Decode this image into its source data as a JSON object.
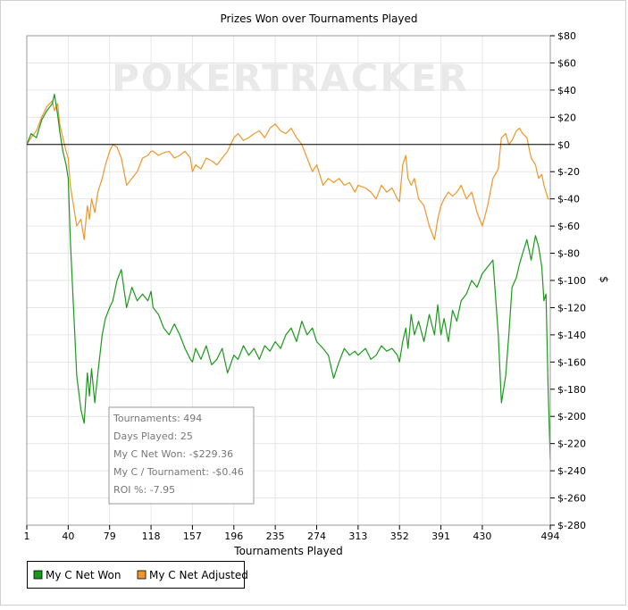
{
  "chart_data": {
    "type": "line",
    "title": "Prizes Won over Tournaments Played",
    "xlabel": "Tournaments Played",
    "ylabel": "$",
    "watermark": "POKERTRACKER",
    "xlim": [
      1,
      494
    ],
    "ylim": [
      -280,
      80
    ],
    "x_ticks": [
      1,
      40,
      79,
      118,
      157,
      196,
      235,
      274,
      313,
      352,
      391,
      430,
      494
    ],
    "y_ticks": [
      80,
      60,
      40,
      20,
      0,
      -20,
      -40,
      -60,
      -80,
      -100,
      -120,
      -140,
      -160,
      -180,
      -200,
      -220,
      -240,
      -260,
      -280
    ],
    "y_tick_labels": [
      "$80",
      "$60",
      "$40",
      "$20",
      "$0",
      "$-20",
      "$-40",
      "$-60",
      "$-80",
      "$-100",
      "$-120",
      "$-140",
      "$-160",
      "$-180",
      "$-200",
      "$-220",
      "$-240",
      "$-260",
      "$-280"
    ],
    "y_axis_position": "right",
    "grid": true,
    "legend_position": "bottom-left",
    "series": [
      {
        "name": "My C Net Won",
        "color": "#1a9a1a",
        "x": [
          1,
          5,
          10,
          15,
          20,
          25,
          27,
          30,
          32,
          35,
          38,
          40,
          42,
          45,
          48,
          52,
          55,
          58,
          60,
          62,
          65,
          68,
          72,
          75,
          79,
          82,
          86,
          90,
          95,
          100,
          105,
          110,
          115,
          118,
          120,
          125,
          130,
          135,
          140,
          145,
          150,
          155,
          157,
          160,
          165,
          170,
          175,
          180,
          185,
          190,
          196,
          200,
          205,
          210,
          215,
          220,
          225,
          230,
          235,
          240,
          245,
          250,
          255,
          260,
          265,
          270,
          274,
          280,
          285,
          290,
          295,
          300,
          305,
          310,
          313,
          320,
          325,
          330,
          335,
          340,
          345,
          350,
          352,
          355,
          358,
          360,
          363,
          366,
          370,
          375,
          380,
          385,
          388,
          391,
          394,
          398,
          402,
          406,
          410,
          415,
          420,
          425,
          430,
          435,
          440,
          445,
          448,
          452,
          455,
          458,
          462,
          465,
          468,
          472,
          476,
          480,
          483,
          486,
          488,
          490,
          492,
          494
        ],
        "y": [
          0,
          8,
          5,
          18,
          25,
          30,
          37,
          22,
          10,
          -5,
          -15,
          -25,
          -70,
          -120,
          -170,
          -195,
          -205,
          -168,
          -185,
          -165,
          -190,
          -168,
          -140,
          -128,
          -120,
          -115,
          -100,
          -92,
          -120,
          -105,
          -115,
          -110,
          -115,
          -108,
          -120,
          -125,
          -135,
          -140,
          -132,
          -140,
          -150,
          -158,
          -160,
          -150,
          -158,
          -148,
          -162,
          -158,
          -150,
          -168,
          -155,
          -158,
          -148,
          -155,
          -150,
          -158,
          -148,
          -152,
          -145,
          -150,
          -140,
          -135,
          -145,
          -130,
          -140,
          -135,
          -145,
          -150,
          -155,
          -172,
          -160,
          -150,
          -155,
          -152,
          -155,
          -150,
          -158,
          -155,
          -148,
          -152,
          -150,
          -155,
          -160,
          -145,
          -135,
          -150,
          -125,
          -140,
          -130,
          -145,
          -125,
          -140,
          -118,
          -140,
          -128,
          -145,
          -122,
          -130,
          -115,
          -110,
          -100,
          -105,
          -95,
          -90,
          -85,
          -140,
          -190,
          -170,
          -140,
          -105,
          -98,
          -88,
          -80,
          -70,
          -85,
          -67,
          -75,
          -90,
          -115,
          -110,
          -180,
          -232
        ]
      },
      {
        "name": "My C Net Adjusted",
        "color": "#f0962a",
        "x": [
          1,
          5,
          10,
          15,
          20,
          25,
          27,
          30,
          32,
          35,
          38,
          40,
          42,
          45,
          48,
          52,
          55,
          58,
          60,
          62,
          65,
          68,
          72,
          75,
          79,
          82,
          86,
          90,
          95,
          100,
          105,
          110,
          115,
          118,
          120,
          125,
          130,
          135,
          140,
          145,
          150,
          155,
          157,
          160,
          165,
          170,
          175,
          180,
          185,
          190,
          196,
          200,
          205,
          210,
          215,
          220,
          225,
          230,
          235,
          240,
          245,
          250,
          255,
          260,
          265,
          270,
          274,
          280,
          285,
          290,
          295,
          300,
          305,
          310,
          313,
          320,
          325,
          330,
          335,
          340,
          345,
          350,
          352,
          355,
          358,
          360,
          363,
          366,
          370,
          375,
          380,
          385,
          388,
          391,
          394,
          398,
          402,
          406,
          410,
          415,
          420,
          425,
          430,
          435,
          440,
          445,
          448,
          452,
          455,
          458,
          462,
          465,
          468,
          472,
          476,
          480,
          483,
          486,
          488,
          490,
          492,
          494
        ],
        "y": [
          0,
          5,
          10,
          20,
          28,
          32,
          25,
          30,
          15,
          5,
          -5,
          -10,
          -30,
          -45,
          -60,
          -55,
          -70,
          -45,
          -55,
          -40,
          -50,
          -35,
          -25,
          -15,
          -5,
          0,
          -2,
          -10,
          -30,
          -25,
          -20,
          -10,
          -8,
          -5,
          -5,
          -8,
          -6,
          -5,
          -10,
          -8,
          -5,
          -10,
          -20,
          -15,
          -18,
          -10,
          -12,
          -15,
          -10,
          -5,
          5,
          8,
          3,
          5,
          8,
          10,
          5,
          12,
          15,
          10,
          8,
          12,
          5,
          0,
          -10,
          -20,
          -15,
          -30,
          -25,
          -28,
          -25,
          -30,
          -28,
          -35,
          -30,
          -32,
          -35,
          -40,
          -30,
          -35,
          -32,
          -40,
          -42,
          -15,
          -8,
          -25,
          -30,
          -25,
          -40,
          -45,
          -60,
          -70,
          -55,
          -45,
          -40,
          -35,
          -38,
          -35,
          -30,
          -40,
          -35,
          -50,
          -60,
          -45,
          -25,
          -18,
          5,
          8,
          0,
          3,
          10,
          12,
          8,
          5,
          -10,
          -15,
          -25,
          -22,
          -30,
          -35,
          -40,
          -40
        ]
      }
    ],
    "info_box": [
      "Tournaments: 494",
      "Days Played: 25",
      "My C Net Won: -$229.36",
      "My C / Tournament: -$0.46",
      "ROI %: -7.95"
    ]
  }
}
